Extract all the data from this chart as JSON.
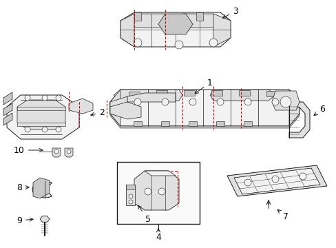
{
  "background_color": "#ffffff",
  "line_color": "#1a1a1a",
  "fill_light": "#f2f2f2",
  "fill_mid": "#e0e0e0",
  "fill_dark": "#c8c8c8",
  "red_color": "#cc0000",
  "label_color": "#000000",
  "label_fontsize": 9,
  "figsize": [
    4.89,
    3.6
  ],
  "dpi": 100
}
